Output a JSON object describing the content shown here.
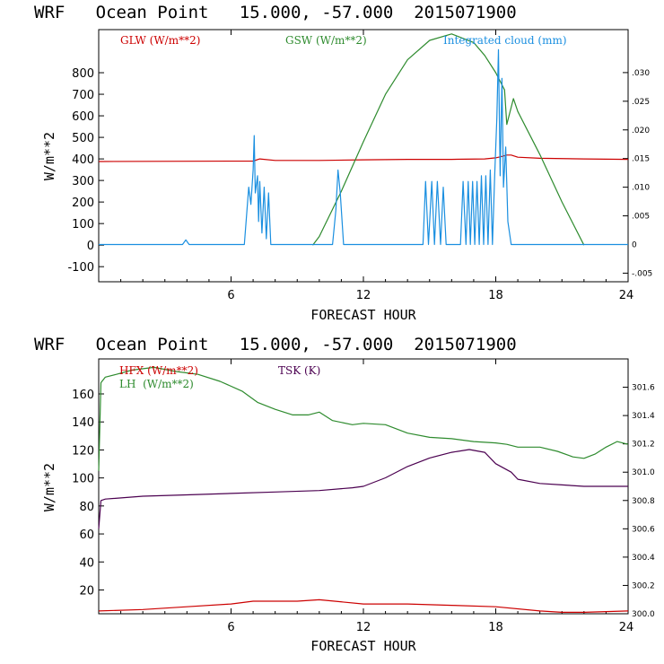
{
  "colors": {
    "red": "#cc0000",
    "green": "#2e8b2e",
    "blue": "#1a8fe0",
    "purple": "#4b0050",
    "axis": "#000000"
  },
  "chart_data": [
    {
      "type": "line",
      "title": "WRF   Ocean Point   15.000, -57.000  2015071900",
      "xlabel": "FORECAST HOUR",
      "ylabel": "W/m**2",
      "xlim": [
        0,
        24
      ],
      "ylim": [
        -170,
        1000
      ],
      "xticks": [
        6,
        12,
        18,
        24
      ],
      "yticks": [
        -100,
        0,
        100,
        200,
        300,
        400,
        500,
        600,
        700,
        800
      ],
      "ylim_right": [
        -0.0065,
        0.0375
      ],
      "yticks_right": [
        -0.005,
        0,
        0.005,
        0.01,
        0.015,
        0.02,
        0.025,
        0.03
      ],
      "ytick_labels_right": [
        "-.005",
        "0",
        ".005",
        ".010",
        ".015",
        ".020",
        ".025",
        ".030"
      ],
      "legend": [
        "GLW (W/m**2)",
        "GSW (W/m**2)",
        "Integrated cloud (mm)"
      ],
      "series": [
        {
          "name": "GLW (W/m**2)",
          "axis": "left",
          "x": [
            0,
            7,
            7.3,
            8,
            10,
            12,
            14,
            16,
            17.5,
            18,
            18.3,
            18.5,
            18.7,
            19,
            20,
            22,
            24
          ],
          "y": [
            388,
            390,
            400,
            393,
            393,
            396,
            398,
            398,
            400,
            405,
            412,
            418,
            418,
            408,
            403,
            400,
            398
          ]
        },
        {
          "name": "GSW (W/m**2)",
          "axis": "left",
          "x": [
            9.7,
            10,
            11,
            12,
            13,
            14,
            15,
            16,
            17,
            17.5,
            18,
            18.4,
            18.5,
            18.8,
            19,
            19.5,
            20,
            21,
            22
          ],
          "y": [
            0,
            40,
            250,
            480,
            700,
            860,
            950,
            980,
            940,
            880,
            800,
            720,
            560,
            680,
            620,
            520,
            420,
            200,
            0
          ]
        },
        {
          "name": "Integrated cloud (mm)",
          "axis": "right",
          "x": [
            0,
            3.8,
            3.95,
            4.1,
            6.6,
            6.8,
            6.9,
            7.0,
            7.05,
            7.1,
            7.2,
            7.25,
            7.3,
            7.4,
            7.5,
            7.6,
            7.7,
            7.8,
            8.0,
            10.6,
            10.75,
            10.85,
            10.95,
            11.1,
            14.7,
            14.82,
            14.95,
            15.1,
            15.22,
            15.35,
            15.5,
            15.62,
            15.75,
            16.4,
            16.52,
            16.65,
            16.75,
            16.85,
            16.95,
            17.05,
            17.15,
            17.25,
            17.35,
            17.45,
            17.55,
            17.65,
            17.75,
            17.85,
            17.95,
            18.05,
            18.12,
            18.2,
            18.28,
            18.35,
            18.45,
            18.55,
            18.7,
            24
          ],
          "y": [
            0,
            0,
            0.0008,
            0,
            0,
            0.01,
            0.007,
            0.013,
            0.019,
            0.009,
            0.012,
            0.004,
            0.011,
            0.002,
            0.01,
            0.001,
            0.009,
            0,
            0,
            0,
            0.006,
            0.013,
            0.009,
            0,
            0,
            0.011,
            0,
            0.011,
            0,
            0.011,
            0,
            0.01,
            0,
            0,
            0.011,
            0,
            0.011,
            0,
            0.011,
            0,
            0.011,
            0,
            0.012,
            0,
            0.012,
            0,
            0.013,
            0,
            0.012,
            0.022,
            0.034,
            0.012,
            0.029,
            0.01,
            0.017,
            0.004,
            0,
            0
          ]
        }
      ]
    },
    {
      "type": "line",
      "title": "WRF   Ocean Point   15.000, -57.000  2015071900",
      "xlabel": "FORECAST HOUR",
      "ylabel": "W/m**2",
      "xlim": [
        0,
        24
      ],
      "ylim": [
        3,
        185
      ],
      "xticks": [
        6,
        12,
        18,
        24
      ],
      "yticks": [
        20,
        40,
        60,
        80,
        100,
        120,
        140,
        160
      ],
      "ylim_right": [
        300.0,
        301.8
      ],
      "yticks_right": [
        300.0,
        300.2,
        300.4,
        300.6,
        300.8,
        301.0,
        301.2,
        301.4,
        301.6
      ],
      "ytick_labels_right": [
        "300.0",
        "300.2",
        "300.4",
        "300.6",
        "300.8",
        "301.0",
        "301.2",
        "301.4",
        "301.6"
      ],
      "legend": [
        "HFX (W/m**2)",
        "LH  (W/m**2)",
        "TSK (K)"
      ],
      "series": [
        {
          "name": "HFX (W/m**2)",
          "axis": "left",
          "x": [
            0,
            2,
            4,
            6,
            7,
            9,
            10,
            12,
            14,
            16,
            18,
            20,
            21,
            22,
            24
          ],
          "y": [
            5,
            6,
            8,
            10,
            12,
            12,
            13,
            10,
            10,
            9,
            8,
            5,
            4,
            4,
            5
          ]
        },
        {
          "name": "LH  (W/m**2)",
          "axis": "left",
          "x": [
            0,
            0.1,
            0.3,
            0.8,
            1.5,
            2.5,
            3.5,
            4.5,
            5.5,
            6.5,
            7.2,
            8,
            8.8,
            9.5,
            10,
            10.6,
            11.5,
            12,
            13,
            14,
            15,
            16,
            17,
            18,
            18.5,
            19,
            20,
            20.8,
            21.5,
            22,
            22.5,
            23,
            23.5,
            24
          ],
          "y": [
            105,
            168,
            172,
            174,
            177,
            179,
            176,
            174,
            169,
            162,
            154,
            149,
            145,
            145,
            147,
            141,
            138,
            139,
            138,
            132,
            129,
            128,
            126,
            125,
            124,
            122,
            122,
            119,
            115,
            114,
            117,
            122,
            126,
            124
          ]
        },
        {
          "name": "TSK (K)",
          "axis": "right",
          "x": [
            0,
            0.1,
            0.3,
            2,
            4,
            6,
            8,
            10,
            11.5,
            12,
            13,
            14,
            15,
            16,
            16.8,
            17.5,
            18,
            18.7,
            19,
            20,
            21,
            22,
            24
          ],
          "y": [
            300.6,
            300.8,
            300.81,
            300.83,
            300.84,
            300.85,
            300.86,
            300.87,
            300.89,
            300.9,
            300.96,
            301.04,
            301.1,
            301.14,
            301.16,
            301.14,
            301.06,
            301.0,
            300.95,
            300.92,
            300.91,
            300.9,
            300.9
          ]
        }
      ]
    }
  ]
}
